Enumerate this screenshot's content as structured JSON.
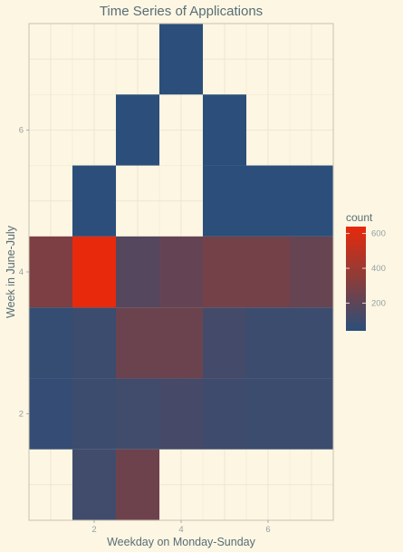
{
  "chart_data": {
    "type": "heatmap",
    "title": "Time Series of Applications",
    "xlabel": "Weekday on Monday-Sunday",
    "ylabel": "Week in June-July",
    "xlim": [
      0.5,
      7.5
    ],
    "ylim": [
      0.5,
      7.5
    ],
    "x_ticks": [
      2,
      4,
      6
    ],
    "y_ticks": [
      2,
      4,
      6
    ],
    "grid": true,
    "legend": {
      "title": "count",
      "placement": "right",
      "ticks": [
        200,
        400,
        600
      ],
      "range": [
        40,
        640
      ]
    },
    "colors": {
      "low": "#2b4f7a",
      "high": "#e8290b",
      "background": "#fdf6e3",
      "panel_border": "#c8c3b0",
      "grid": "#ece5d0"
    },
    "cells": [
      {
        "x": 2,
        "y": 1,
        "count": 110
      },
      {
        "x": 3,
        "y": 1,
        "count": 250
      },
      {
        "x": 1,
        "y": 2,
        "count": 70
      },
      {
        "x": 2,
        "y": 2,
        "count": 95
      },
      {
        "x": 3,
        "y": 2,
        "count": 110
      },
      {
        "x": 4,
        "y": 2,
        "count": 125
      },
      {
        "x": 5,
        "y": 2,
        "count": 100
      },
      {
        "x": 6,
        "y": 2,
        "count": 90
      },
      {
        "x": 7,
        "y": 2,
        "count": 90
      },
      {
        "x": 1,
        "y": 3,
        "count": 75
      },
      {
        "x": 2,
        "y": 3,
        "count": 95
      },
      {
        "x": 3,
        "y": 3,
        "count": 240
      },
      {
        "x": 4,
        "y": 3,
        "count": 240
      },
      {
        "x": 5,
        "y": 3,
        "count": 120
      },
      {
        "x": 6,
        "y": 3,
        "count": 90
      },
      {
        "x": 7,
        "y": 3,
        "count": 90
      },
      {
        "x": 1,
        "y": 4,
        "count": 300
      },
      {
        "x": 2,
        "y": 4,
        "count": 640
      },
      {
        "x": 3,
        "y": 4,
        "count": 170
      },
      {
        "x": 4,
        "y": 4,
        "count": 220
      },
      {
        "x": 5,
        "y": 4,
        "count": 270
      },
      {
        "x": 6,
        "y": 4,
        "count": 270
      },
      {
        "x": 7,
        "y": 4,
        "count": 230
      },
      {
        "x": 2,
        "y": 5,
        "count": 40
      },
      {
        "x": 5,
        "y": 5,
        "count": 40
      },
      {
        "x": 6,
        "y": 5,
        "count": 40
      },
      {
        "x": 7,
        "y": 5,
        "count": 40
      },
      {
        "x": 3,
        "y": 6,
        "count": 40
      },
      {
        "x": 5,
        "y": 6,
        "count": 40
      },
      {
        "x": 4,
        "y": 7,
        "count": 40
      }
    ]
  }
}
